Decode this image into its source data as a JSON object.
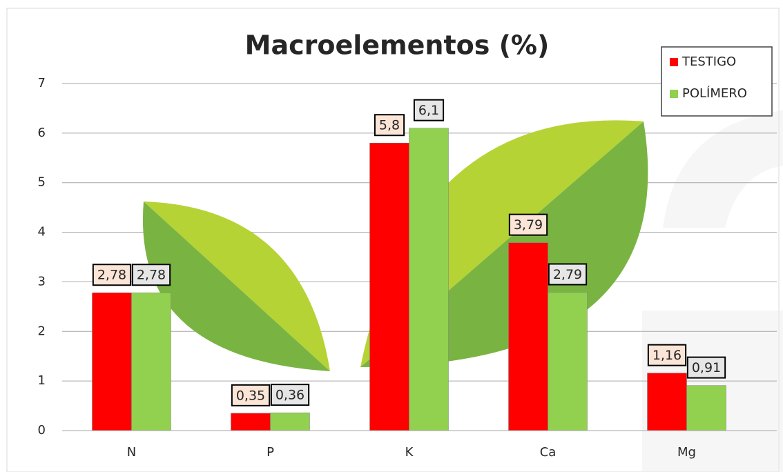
{
  "chart_data": {
    "type": "bar",
    "title": "Macroelementos (%)",
    "categories": [
      "N",
      "P",
      "K",
      "Ca",
      "Mg"
    ],
    "series": [
      {
        "name": "TESTIGO",
        "color": "#ff0000",
        "values": [
          2.78,
          0.35,
          5.8,
          3.79,
          1.16
        ],
        "value_labels": [
          "2,78",
          "0,35",
          "5,8",
          "3,79",
          "1,16"
        ]
      },
      {
        "name": "POLÍMERO",
        "color": "#92d050",
        "values": [
          2.78,
          0.36,
          6.1,
          2.79,
          0.91
        ],
        "value_labels": [
          "2,78",
          "0,36",
          "6,1",
          "2,79",
          "0,91"
        ]
      }
    ],
    "ylim": [
      0,
      7
    ],
    "yticks": [
      0,
      1,
      2,
      3,
      4,
      5,
      6,
      7
    ],
    "grid": true,
    "legend": "top-right"
  }
}
